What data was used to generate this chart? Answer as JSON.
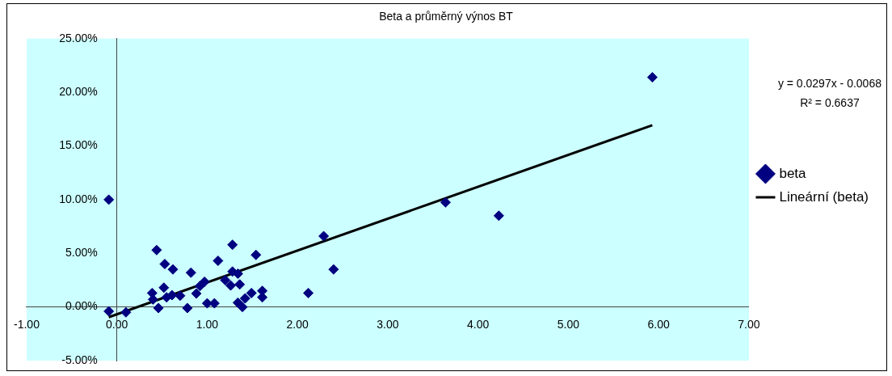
{
  "chart_data": {
    "type": "scatter",
    "title": "Beta a průměrný výnos BT",
    "series": [
      {
        "name": "beta",
        "type": "scatter",
        "color": "#000080",
        "marker": "diamond",
        "x": [
          -0.09,
          -0.09,
          0.1,
          0.44,
          0.53,
          0.62,
          0.39,
          0.4,
          0.52,
          0.55,
          0.61,
          0.7,
          0.46,
          0.78,
          0.82,
          0.88,
          0.92,
          0.97,
          1.0,
          1.08,
          1.12,
          1.28,
          1.2,
          1.28,
          1.26,
          1.34,
          1.36,
          1.54,
          1.34,
          1.39,
          1.42,
          1.49,
          1.61,
          1.61,
          2.12,
          2.29,
          2.4,
          3.64,
          4.23,
          5.93
        ],
        "values": [
          10.0,
          -0.4,
          -0.5,
          5.3,
          4.0,
          3.5,
          1.3,
          0.7,
          1.8,
          0.9,
          1.1,
          1.05,
          -0.1,
          -0.1,
          3.2,
          1.25,
          1.95,
          2.35,
          0.34,
          0.34,
          4.3,
          5.8,
          2.5,
          3.3,
          2.0,
          3.1,
          2.1,
          4.85,
          0.4,
          0.0,
          0.8,
          1.3,
          1.5,
          0.9,
          1.3,
          6.6,
          3.5,
          9.75,
          8.5,
          21.4
        ]
      },
      {
        "name": "Lineární (beta)",
        "type": "line",
        "color": "#000000",
        "marker": "none",
        "line_style": "solid",
        "x": [
          -0.09,
          5.93
        ],
        "values": [
          -0.95,
          16.93
        ]
      }
    ],
    "xlim": [
      -1,
      7
    ],
    "xticks": [
      {
        "value": -1,
        "label": "-1.00"
      },
      {
        "value": 0,
        "label": "0.00"
      },
      {
        "value": 1,
        "label": "1.00"
      },
      {
        "value": 2,
        "label": "2.00"
      },
      {
        "value": 3,
        "label": "3.00"
      },
      {
        "value": 4,
        "label": "4.00"
      },
      {
        "value": 5,
        "label": "5.00"
      },
      {
        "value": 6,
        "label": "6.00"
      },
      {
        "value": 7,
        "label": "7.00"
      }
    ],
    "ylim": [
      -5,
      25
    ],
    "yticks": [
      {
        "value": -5,
        "label": "-5.00%"
      },
      {
        "value": 0,
        "label": "0.00%"
      },
      {
        "value": 5,
        "label": "5.00%"
      },
      {
        "value": 10,
        "label": "10.00%"
      },
      {
        "value": 15,
        "label": "15.00%"
      },
      {
        "value": 20,
        "label": "20.00%"
      },
      {
        "value": 25,
        "label": "25.00%"
      }
    ],
    "annotations": [
      "y = 0.0297x - 0.0068",
      "R² = 0.6637"
    ],
    "legend": "right"
  }
}
